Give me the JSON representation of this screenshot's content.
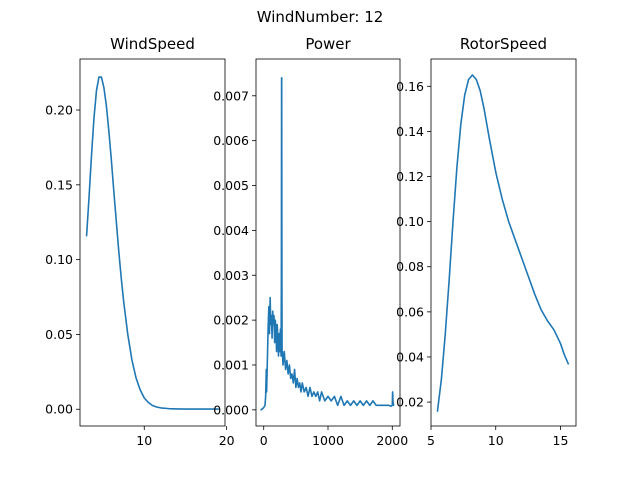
{
  "suptitle": "WindNumber: 12",
  "colors": {
    "series": "#1f77b4",
    "axes": "#000000",
    "background": "#ffffff"
  },
  "chart_data": [
    {
      "type": "line",
      "title": "WindSpeed",
      "xlabel": "",
      "ylabel": "",
      "xlim": [
        2.2,
        19.8
      ],
      "ylim": [
        -0.0112,
        0.2341
      ],
      "xticks": [
        10,
        20
      ],
      "yticks": [
        0.0,
        0.05,
        0.1,
        0.15,
        0.2
      ],
      "ytick_labels": [
        "0.00",
        "0.05",
        "0.10",
        "0.15",
        "0.20"
      ],
      "grid": false,
      "series": [
        {
          "x": [
            3.0,
            3.3,
            3.6,
            3.9,
            4.2,
            4.5,
            4.8,
            5.1,
            5.4,
            5.7,
            6.0,
            6.3,
            6.6,
            6.9,
            7.2,
            7.5,
            8.0,
            8.5,
            9.0,
            9.5,
            10.0,
            10.5,
            11.0,
            11.5,
            12.0,
            13.0,
            14.0,
            15.0,
            16.0,
            17.0,
            18.0,
            19.0
          ],
          "y": [
            0.116,
            0.142,
            0.17,
            0.195,
            0.213,
            0.222,
            0.222,
            0.215,
            0.203,
            0.186,
            0.167,
            0.146,
            0.126,
            0.106,
            0.088,
            0.072,
            0.05,
            0.033,
            0.021,
            0.013,
            0.0075,
            0.0045,
            0.0025,
            0.0015,
            0.0009,
            0.0004,
            0.0002,
            0.0001,
            0.0001,
            0.0001,
            0.0001,
            0.0001
          ]
        }
      ]
    },
    {
      "type": "line",
      "title": "Power",
      "xlabel": "",
      "ylabel": "",
      "xlim": [
        -120,
        2120
      ],
      "ylim": [
        -0.00036,
        0.00782
      ],
      "xticks": [
        0,
        1000,
        2000
      ],
      "yticks": [
        0.0,
        0.001,
        0.002,
        0.003,
        0.004,
        0.005,
        0.006,
        0.007
      ],
      "ytick_labels": [
        "0.000",
        "0.001",
        "0.002",
        "0.003",
        "0.004",
        "0.005",
        "0.006",
        "0.007"
      ],
      "grid": false,
      "series": [
        {
          "x": [
            -40,
            0,
            20,
            30,
            40,
            45,
            50,
            60,
            70,
            80,
            90,
            100,
            110,
            120,
            130,
            140,
            150,
            160,
            170,
            180,
            190,
            200,
            210,
            220,
            230,
            240,
            250,
            260,
            270,
            275,
            278,
            280,
            283,
            286,
            290,
            300,
            320,
            340,
            360,
            380,
            400,
            420,
            440,
            460,
            480,
            500,
            520,
            540,
            560,
            580,
            600,
            630,
            660,
            690,
            720,
            750,
            780,
            810,
            840,
            870,
            900,
            950,
            1000,
            1050,
            1100,
            1150,
            1200,
            1250,
            1300,
            1350,
            1400,
            1450,
            1500,
            1550,
            1600,
            1650,
            1700,
            1750,
            1800,
            1850,
            1900,
            1950,
            1980,
            2000,
            2005,
            2010,
            2020
          ],
          "y": [
            0.0,
            5e-05,
            0.0001,
            0.0003,
            0.0009,
            0.0004,
            0.0007,
            0.0013,
            0.0019,
            0.0023,
            0.0017,
            0.0025,
            0.0019,
            0.0021,
            0.0016,
            0.0022,
            0.0019,
            0.0021,
            0.0015,
            0.002,
            0.0018,
            0.0013,
            0.0019,
            0.0016,
            0.0012,
            0.0017,
            0.0013,
            0.0018,
            0.0012,
            0.003,
            0.0074,
            0.0074,
            0.003,
            0.0012,
            0.0013,
            0.001,
            0.0013,
            0.0009,
            0.0011,
            0.0008,
            0.001,
            0.0007,
            0.0008,
            0.0006,
            0.0009,
            0.0005,
            0.0007,
            0.0005,
            0.0006,
            0.0004,
            0.0006,
            0.0004,
            0.0005,
            0.0003,
            0.0005,
            0.0003,
            0.0004,
            0.0003,
            0.0004,
            0.0002,
            0.0004,
            0.0002,
            0.0003,
            0.0002,
            0.0003,
            0.0001,
            0.0003,
            0.0001,
            0.0002,
            0.0001,
            0.0002,
            0.0001,
            0.0002,
            0.0001,
            0.0002,
            0.0001,
            0.0002,
            0.0001,
            0.0001,
            0.0001,
            0.0001,
            0.0001,
            8e-05,
            0.0001,
            0.0004,
            0.0002,
            0.0001
          ]
        }
      ]
    },
    {
      "type": "line",
      "title": "RotorSpeed",
      "xlabel": "",
      "ylabel": "",
      "xlim": [
        5.0,
        16.2
      ],
      "ylim": [
        0.0094,
        0.1721
      ],
      "xticks": [
        5,
        10,
        15
      ],
      "yticks": [
        0.02,
        0.04,
        0.06,
        0.08,
        0.1,
        0.12,
        0.14,
        0.16
      ],
      "ytick_labels": [
        "0.02",
        "0.04",
        "0.06",
        "0.08",
        "0.10",
        "0.12",
        "0.14",
        "0.16"
      ],
      "grid": false,
      "series": [
        {
          "x": [
            5.5,
            5.8,
            6.1,
            6.4,
            6.7,
            7.0,
            7.3,
            7.6,
            7.9,
            8.2,
            8.5,
            8.8,
            9.1,
            9.5,
            10.0,
            10.5,
            11.0,
            11.5,
            12.0,
            12.5,
            13.0,
            13.5,
            14.0,
            14.5,
            15.0,
            15.3,
            15.6
          ],
          "y": [
            0.016,
            0.03,
            0.05,
            0.074,
            0.1,
            0.124,
            0.143,
            0.156,
            0.163,
            0.165,
            0.163,
            0.158,
            0.15,
            0.137,
            0.122,
            0.11,
            0.1,
            0.092,
            0.084,
            0.076,
            0.068,
            0.061,
            0.056,
            0.052,
            0.046,
            0.041,
            0.037
          ]
        }
      ]
    }
  ]
}
